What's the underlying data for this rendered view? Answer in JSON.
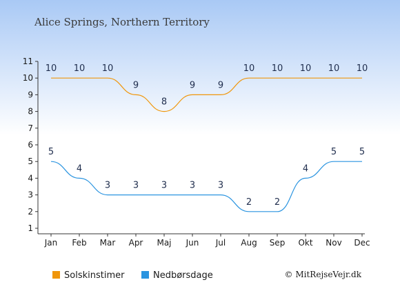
{
  "header": {
    "title": "Alice Springs, Northern Territory"
  },
  "credit": "© MitRejseVejr.dk",
  "colors": {
    "sunshine": "#f0960a",
    "rain": "#2a94e0",
    "background_top": "#a9c9f5",
    "background_bottom": "#ffffff"
  },
  "chart_data": {
    "type": "line",
    "title": "Alice Springs, Northern Territory",
    "xlabel": "",
    "ylabel": "",
    "ylim": [
      1,
      11
    ],
    "yticks": [
      1,
      2,
      3,
      4,
      5,
      6,
      7,
      8,
      9,
      10,
      11
    ],
    "grid": false,
    "legend_position": "bottom",
    "categories": [
      "Jan",
      "Feb",
      "Mar",
      "Apr",
      "Maj",
      "Jun",
      "Jul",
      "Aug",
      "Sep",
      "Okt",
      "Nov",
      "Dec"
    ],
    "series": [
      {
        "name": "Solskinstimer",
        "color": "#f0960a",
        "values": [
          10,
          10,
          10,
          9,
          8,
          9,
          9,
          10,
          10,
          10,
          10,
          10
        ]
      },
      {
        "name": "Nedbørsdage",
        "color": "#2a94e0",
        "values": [
          5,
          4,
          3,
          3,
          3,
          3,
          3,
          2,
          2,
          4,
          5,
          5
        ]
      }
    ]
  }
}
